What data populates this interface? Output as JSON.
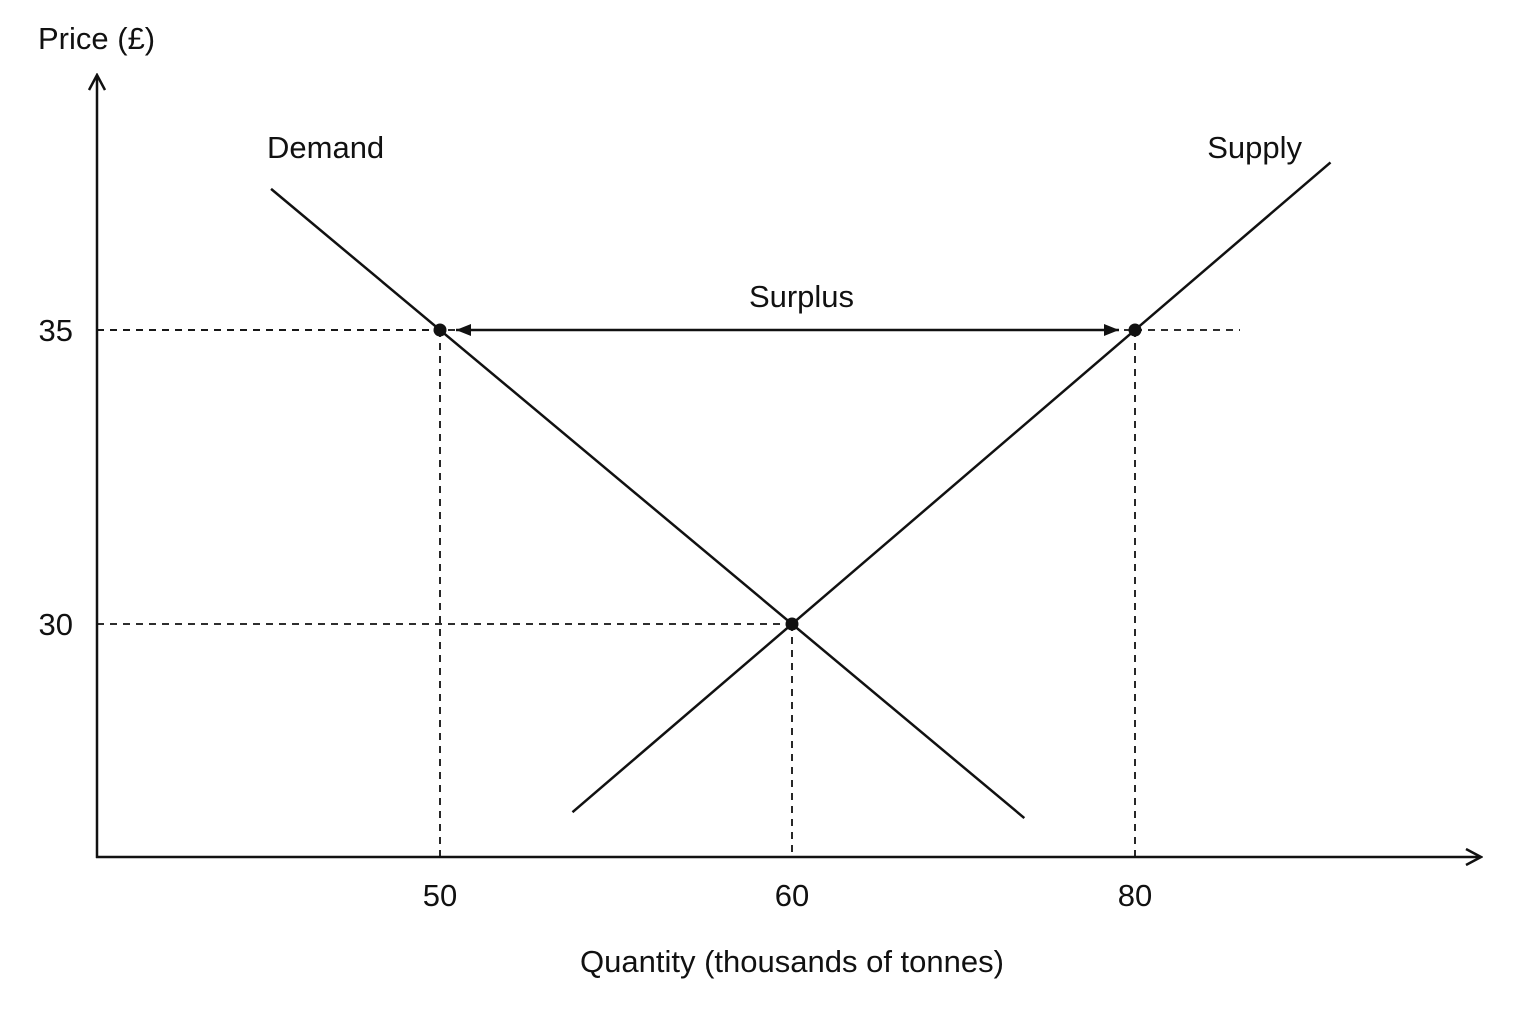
{
  "chart_data": {
    "type": "line",
    "title": "",
    "xlabel": "Quantity (thousands of tonnes)",
    "ylabel": "Price (£)",
    "x_ticks": [
      "50",
      "60",
      "80"
    ],
    "y_ticks": [
      "35",
      "30"
    ],
    "series": [
      {
        "name": "Demand",
        "points": [
          {
            "x": 50,
            "y": 35
          },
          {
            "x": 60,
            "y": 30
          }
        ]
      },
      {
        "name": "Supply",
        "points": [
          {
            "x": 60,
            "y": 30
          },
          {
            "x": 80,
            "y": 35
          }
        ]
      }
    ],
    "annotations": {
      "surplus_label": "Surplus",
      "surplus_from_x": 50,
      "surplus_to_x": 80,
      "surplus_y": 35
    },
    "grid": false,
    "legend": "none"
  }
}
